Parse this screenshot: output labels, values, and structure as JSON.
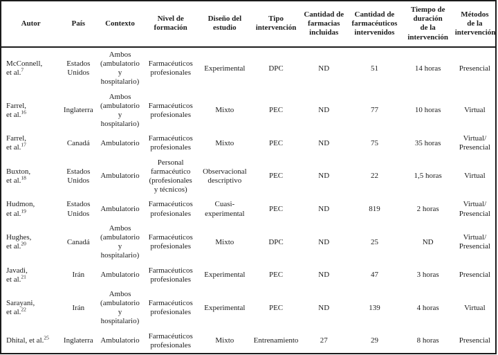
{
  "colors": {
    "background": "#ffffff",
    "border": "#1b1b1b",
    "text": "#1b1b1b"
  },
  "table": {
    "columns": [
      {
        "key": "autor",
        "label": "Autor"
      },
      {
        "key": "pais",
        "label": "País"
      },
      {
        "key": "contexto",
        "label": "Contexto"
      },
      {
        "key": "nivel",
        "label": "Nivel de\nformación"
      },
      {
        "key": "diseno",
        "label": "Diseño del\nestudio"
      },
      {
        "key": "tipo",
        "label": "Tipo\nintervención"
      },
      {
        "key": "farmacias",
        "label": "Cantidad de\nfarmacias\nincluidas"
      },
      {
        "key": "farmaceuticos",
        "label": "Cantidad de\nfarmacéuticos\nintervenidos"
      },
      {
        "key": "tiempo",
        "label": "Tiempo de\nduración\nde la\nintervención"
      },
      {
        "key": "metodos",
        "label": "Métodos\nde la\nintervención"
      }
    ],
    "rows": [
      {
        "autor": "McConnell,\net al.",
        "ref": "7",
        "pais": "Estados Unidos",
        "contexto": "Ambos\n(ambulatorio\ny\nhospitalario)",
        "nivel": "Farmacéuticos\nprofesionales",
        "diseno": "Experimental",
        "tipo": "DPC",
        "farmacias": "ND",
        "farmaceuticos": "51",
        "tiempo": "14 horas",
        "metodos": "Presencial"
      },
      {
        "autor": "Farrel,\net al.",
        "ref": "16",
        "pais": "Inglaterra",
        "contexto": "Ambos\n(ambulatorio\ny\nhospitalario)",
        "nivel": "Farmacéuticos\nprofesionales",
        "diseno": "Mixto",
        "tipo": "PEC",
        "farmacias": "ND",
        "farmaceuticos": "77",
        "tiempo": "10 horas",
        "metodos": "Virtual"
      },
      {
        "autor": "Farrel,\net al.",
        "ref": "17",
        "pais": "Canadá",
        "contexto": "Ambulatorio",
        "nivel": "Farmacéuticos\nprofesionales",
        "diseno": "Mixto",
        "tipo": "PEC",
        "farmacias": "ND",
        "farmaceuticos": "75",
        "tiempo": "35 horas",
        "metodos": "Virtual/\nPresencial"
      },
      {
        "autor": "Buxton,\net al.",
        "ref": "18",
        "pais": "Estados Unidos",
        "contexto": "Ambulatorio",
        "nivel": "Personal\nfarmacéutico\n(profesionales\ny técnicos)",
        "diseno": "Observacional\ndescriptivo",
        "tipo": "PEC",
        "farmacias": "ND",
        "farmaceuticos": "22",
        "tiempo": "1,5 horas",
        "metodos": "Virtual"
      },
      {
        "autor": "Hudmon,\net al.",
        "ref": "19",
        "pais": "Estados Unidos",
        "contexto": "Ambulatorio",
        "nivel": "Farmacéuticos\nprofesionales",
        "diseno": "Cuasi-\nexperimental",
        "tipo": "PEC",
        "farmacias": "ND",
        "farmaceuticos": "819",
        "tiempo": "2 horas",
        "metodos": "Virtual/\nPresencial"
      },
      {
        "autor": "Hughes,\net al.",
        "ref": "20",
        "pais": "Canadá",
        "contexto": "Ambos\n(ambulatorio\ny\nhospitalario)",
        "nivel": "Farmacéuticos\nprofesionales",
        "diseno": "Mixto",
        "tipo": "DPC",
        "farmacias": "ND",
        "farmaceuticos": "25",
        "tiempo": "ND",
        "metodos": "Virtual/\nPresencial"
      },
      {
        "autor": "Javadi,\net al.",
        "ref": "21",
        "pais": "Irán",
        "contexto": "Ambulatorio",
        "nivel": "Farmacéuticos\nprofesionales",
        "diseno": "Experimental",
        "tipo": "PEC",
        "farmacias": "ND",
        "farmaceuticos": "47",
        "tiempo": "3 horas",
        "metodos": "Presencial"
      },
      {
        "autor": "Sarayani,\net al.",
        "ref": "22",
        "pais": "Irán",
        "contexto": "Ambos\n(ambulatorio\ny\nhospitalario)",
        "nivel": "Farmacéuticos\nprofesionales",
        "diseno": "Experimental",
        "tipo": "PEC",
        "farmacias": "ND",
        "farmaceuticos": "139",
        "tiempo": "4 horas",
        "metodos": "Virtual"
      },
      {
        "autor": "Dhital, et al.",
        "ref": "25",
        "pais": "Inglaterra",
        "contexto": "Ambulatorio",
        "nivel": "Farmacéuticos\nprofesionales",
        "diseno": "Mixto",
        "tipo": "Entrenamiento",
        "farmacias": "27",
        "farmaceuticos": "29",
        "tiempo": "8 horas",
        "metodos": "Presencial"
      }
    ]
  }
}
